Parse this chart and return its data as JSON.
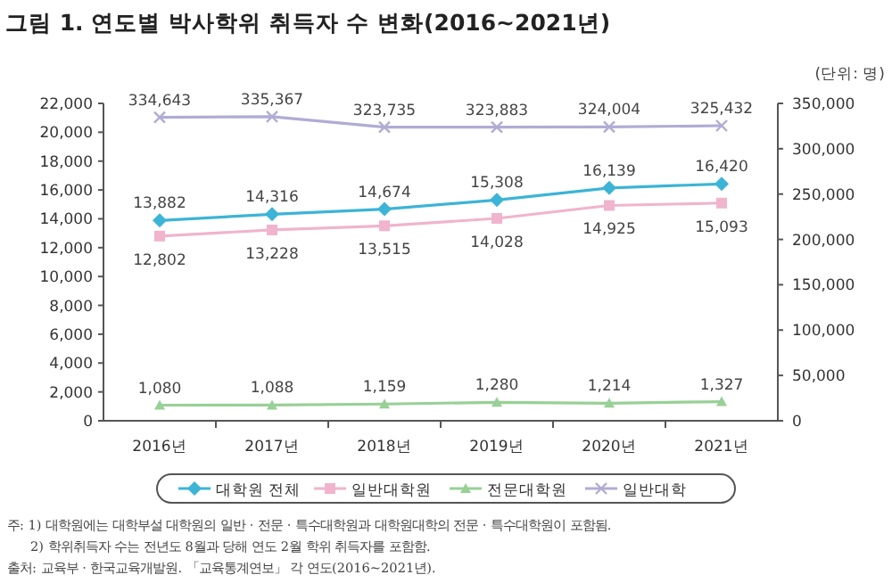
{
  "chart_data": {
    "type": "line",
    "title": "그림 1. 연도별 박사학위 취득자 수 변화(2016~2021년)",
    "categories": [
      "2016년",
      "2017년",
      "2018년",
      "2019년",
      "2020년",
      "2021년"
    ],
    "series": [
      {
        "name": "대학원 전체",
        "color": "#3cb4d6",
        "marker": "diamond",
        "values": [
          13882,
          14316,
          14674,
          15308,
          16139,
          16420
        ],
        "value_labels": [
          "13,882",
          "14,316",
          "14,674",
          "15,308",
          "16,139",
          "16,420"
        ]
      },
      {
        "name": "일반대학원",
        "color": "#f0b4cc",
        "marker": "square",
        "values": [
          12802,
          13228,
          13515,
          14028,
          14925,
          15093
        ],
        "value_labels": [
          "12,802",
          "13,228",
          "13,515",
          "14,028",
          "14,925",
          "15,093"
        ]
      },
      {
        "name": "전문대학원",
        "color": "#98d096",
        "marker": "triangle",
        "values": [
          1080,
          1088,
          1159,
          1280,
          1214,
          1327
        ],
        "value_labels": [
          "1,080",
          "1,088",
          "1,159",
          "1,280",
          "1,214",
          "1,327"
        ]
      },
      {
        "name": "일반대학",
        "color": "#b0acd4",
        "marker": "cross",
        "axis": "y2",
        "values": [
          334643,
          335367,
          323735,
          323883,
          324004,
          325432
        ],
        "value_labels": [
          "334,643",
          "335,367",
          "323,735",
          "323,883",
          "324,004",
          "325,432"
        ]
      }
    ],
    "ylim": [
      0,
      22000
    ],
    "yticks": [
      0,
      {
        "value": 2000,
        "label": "2,000"
      },
      {
        "value": 4000,
        "label": "4,000"
      },
      {
        "value": 6000,
        "label": "6,000"
      },
      {
        "value": 8000,
        "label": "8,000"
      },
      {
        "value": 10000,
        "label": "10,000"
      },
      {
        "value": 12000,
        "label": "12,000"
      },
      {
        "value": 14000,
        "label": "14,000"
      },
      {
        "value": 16000,
        "label": "16,000"
      },
      {
        "value": 18000,
        "label": "18,000"
      },
      {
        "value": 20000,
        "label": "20,000"
      },
      {
        "value": 22000,
        "label": "22,000"
      }
    ],
    "y2lim": [
      0,
      350000
    ],
    "y2ticks": [
      0,
      {
        "value": 50000,
        "label": "50,000"
      },
      {
        "value": 100000,
        "label": "100,000"
      },
      {
        "value": 150000,
        "label": "150,000"
      },
      {
        "value": 200000,
        "label": "200,000"
      },
      {
        "value": 250000,
        "label": "250,000"
      },
      {
        "value": 300000,
        "label": "300,000"
      },
      {
        "value": 350000,
        "label": "350,000"
      }
    ],
    "grid": false,
    "legend": "bottom",
    "annotations": [
      "(단위: 명)",
      "주: 1) 대학원에는 대학부설 대학원의 일반 · 전문 · 특수대학원과 대학원대학의 전문 · 특수대학원이 포함됨.",
      "2) 학위취득자 수는 전년도 8월과 당해 연도 2월 학위 취득자를 포함함.",
      "출처: 교육부 · 한국교육개발원. 「교육통계연보」 각 연도(2016~2021년)."
    ]
  }
}
